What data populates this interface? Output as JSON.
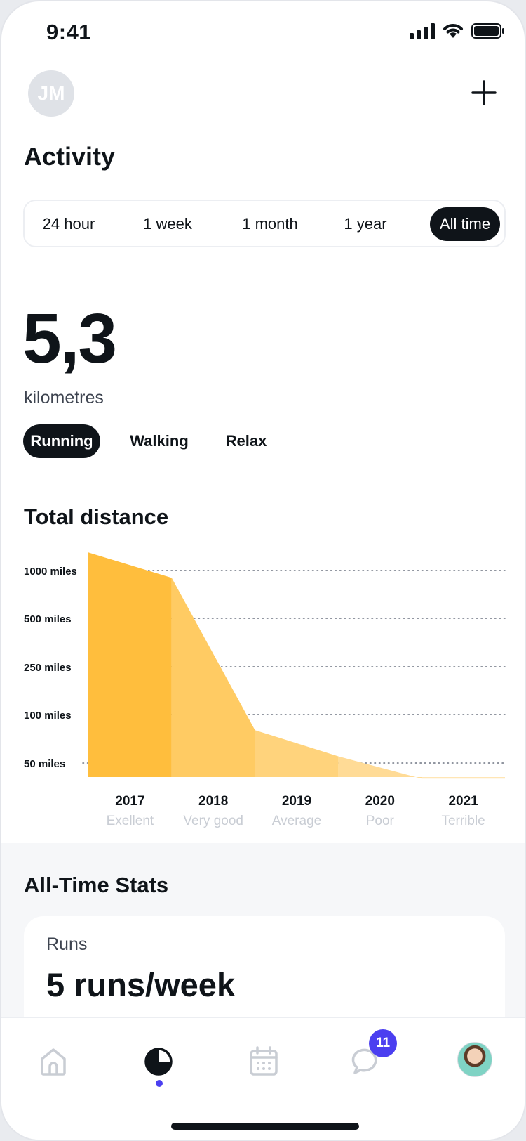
{
  "status_bar": {
    "time": "9:41"
  },
  "header": {
    "avatar_initials": "JM",
    "title": "Activity"
  },
  "range_tabs": [
    "24 hour",
    "1 week",
    "1 month",
    "1 year",
    "All time"
  ],
  "range_tabs_active": "All time",
  "metric": {
    "value": "5,3",
    "unit": "kilometres"
  },
  "activity_tabs": [
    "Running",
    "Walking",
    "Relax"
  ],
  "activity_tabs_active": "Running",
  "chart_section_title": "Total distance",
  "chart_data": {
    "type": "area",
    "title": "Total distance",
    "y_scale": "log",
    "y_ticks": [
      "1000 miles",
      "500 miles",
      "250 miles",
      "100 miles",
      "50 miles"
    ],
    "categories": [
      "2017",
      "2018",
      "2019",
      "2020",
      "2021"
    ],
    "category_sublabels": [
      "Exellent",
      "Very good",
      "Average",
      "Poor",
      "Terrible"
    ],
    "series": [
      {
        "values": [
          1300,
          900,
          80,
          55,
          40
        ]
      }
    ],
    "grid": true,
    "colors": [
      "#ffbe3d",
      "#ffcb63",
      "#ffd37c",
      "#ffdb96",
      "#ffe6b5"
    ]
  },
  "stats": {
    "title": "All-Time Stats",
    "card_label": "Runs",
    "card_value": "5 runs/week"
  },
  "tabbar": {
    "items": [
      "home-icon",
      "pie-chart-icon",
      "calendar-icon",
      "chat-icon",
      "profile-photo"
    ],
    "active": "pie-chart-icon",
    "chat_badge": "11"
  },
  "colors": {
    "ink": "#0f1419",
    "accent": "#4b3ff0",
    "chart_fill": "#ffbe3d"
  }
}
